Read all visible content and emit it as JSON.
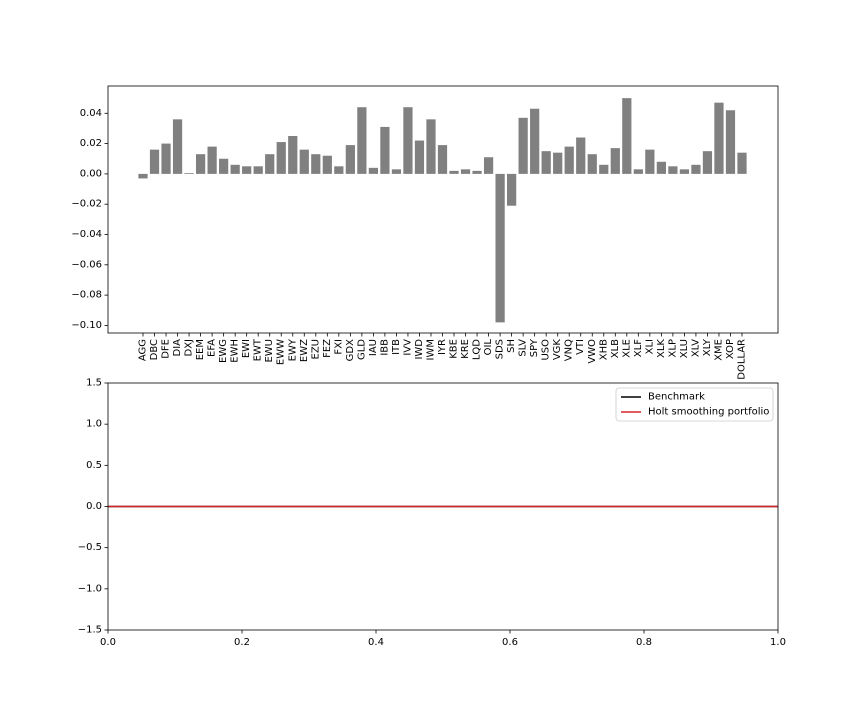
{
  "chart_data": [
    {
      "type": "bar",
      "categories": [
        "AGG",
        "DBC",
        "DFE",
        "DIA",
        "DXJ",
        "EEM",
        "EFA",
        "EWG",
        "EWH",
        "EWI",
        "EWT",
        "EWU",
        "EWW",
        "EWY",
        "EWZ",
        "EZU",
        "FEZ",
        "FXI",
        "GDX",
        "GLD",
        "IAU",
        "IBB",
        "ITB",
        "IVV",
        "IWD",
        "IWM",
        "IYR",
        "KBE",
        "KRE",
        "LQD",
        "OIL",
        "SDS",
        "SH",
        "SLV",
        "SPY",
        "USO",
        "VGK",
        "VNQ",
        "VTI",
        "VWO",
        "XHB",
        "XLB",
        "XLE",
        "XLF",
        "XLI",
        "XLK",
        "XLP",
        "XLU",
        "XLV",
        "XLY",
        "XME",
        "XOP",
        "DOLLAR"
      ],
      "values": [
        -0.003,
        0.016,
        0.02,
        0.036,
        0.0005,
        0.013,
        0.018,
        0.01,
        0.006,
        0.005,
        0.005,
        0.013,
        0.021,
        0.025,
        0.016,
        0.013,
        0.012,
        0.005,
        0.019,
        0.044,
        0.004,
        0.031,
        0.003,
        0.044,
        0.022,
        0.036,
        0.019,
        0.002,
        0.003,
        0.002,
        0.011,
        -0.098,
        -0.021,
        0.037,
        0.043,
        0.015,
        0.014,
        0.018,
        0.024,
        0.013,
        0.006,
        0.017,
        0.05,
        0.003,
        0.016,
        0.008,
        0.005,
        0.003,
        0.006,
        0.015,
        0.047,
        0.042,
        0.014
      ],
      "ylim": [
        -0.105,
        0.058
      ],
      "yticks": [
        "−0.10",
        "−0.08",
        "−0.06",
        "−0.04",
        "−0.02",
        "0.00",
        "0.02",
        "0.04"
      ],
      "ytick_values": [
        -0.1,
        -0.08,
        -0.06,
        -0.04,
        -0.02,
        0.0,
        0.02,
        0.04
      ],
      "bar_color": "#808080",
      "title": "",
      "xlabel": "",
      "ylabel": ""
    },
    {
      "type": "line",
      "x": [
        0.0,
        1.0
      ],
      "series": [
        {
          "name": "Benchmark",
          "values": [
            0.0,
            0.0
          ],
          "color": "#000000"
        },
        {
          "name": "Holt smoothing portfolio",
          "values": [
            0.0,
            0.0
          ],
          "color": "#d62728"
        }
      ],
      "xlim": [
        0.0,
        1.0
      ],
      "ylim": [
        -1.5,
        1.5
      ],
      "xticks": [
        "0.0",
        "0.2",
        "0.4",
        "0.6",
        "0.8",
        "1.0"
      ],
      "xtick_values": [
        0.0,
        0.2,
        0.4,
        0.6,
        0.8,
        1.0
      ],
      "yticks": [
        "−1.5",
        "−1.0",
        "−0.5",
        "0.0",
        "0.5",
        "1.0",
        "1.5"
      ],
      "ytick_values": [
        -1.5,
        -1.0,
        -0.5,
        0.0,
        0.5,
        1.0,
        1.5
      ],
      "legend": "top-right",
      "title": "",
      "xlabel": "",
      "ylabel": ""
    }
  ]
}
